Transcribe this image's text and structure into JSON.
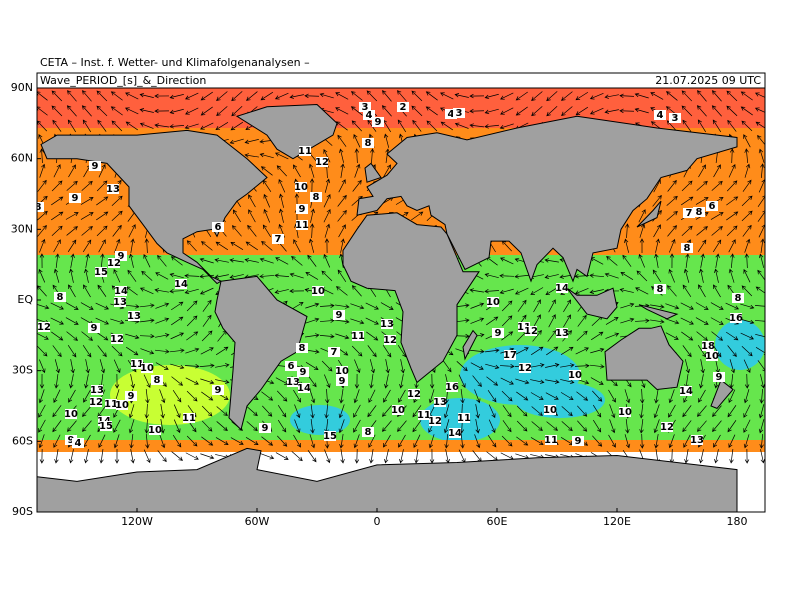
{
  "header": {
    "title": "CETA – Inst. f. Wetter- und Klimafolgenanalysen –",
    "field": "Wave_PERIOD_[s]_&_Direction",
    "date": "21.07.2025 09 UTC"
  },
  "axes": {
    "lat_labels": [
      "90N",
      "60N",
      "30N",
      "EQ",
      "30S",
      "60S",
      "90S"
    ],
    "lon_labels": [
      "120W",
      "60W",
      "0",
      "60E",
      "120E",
      "180"
    ]
  },
  "period_labels": [
    "9",
    "13",
    "9",
    "8",
    "11",
    "12",
    "10",
    "8",
    "9",
    "11",
    "7",
    "6",
    "8",
    "3",
    "4",
    "9",
    "2",
    "4",
    "3",
    "4",
    "3",
    "7",
    "8",
    "6",
    "8",
    "8",
    "8",
    "16",
    "9",
    "12",
    "15",
    "14",
    "13",
    "13",
    "8",
    "14",
    "12",
    "9",
    "12",
    "11",
    "10",
    "10",
    "9",
    "13",
    "11",
    "12",
    "10",
    "14",
    "9",
    "11",
    "12",
    "13",
    "17",
    "12",
    "10",
    "18",
    "10",
    "9",
    "14",
    "7",
    "8",
    "6",
    "9",
    "10",
    "9",
    "13",
    "14",
    "9",
    "8",
    "13",
    "12",
    "11",
    "10",
    "9",
    "10",
    "14",
    "15",
    "11",
    "10",
    "9",
    "15",
    "8",
    "12",
    "16",
    "10",
    "13",
    "11",
    "12",
    "11",
    "14",
    "10",
    "10",
    "12",
    "13",
    "11",
    "9",
    "9",
    "4"
  ]
}
